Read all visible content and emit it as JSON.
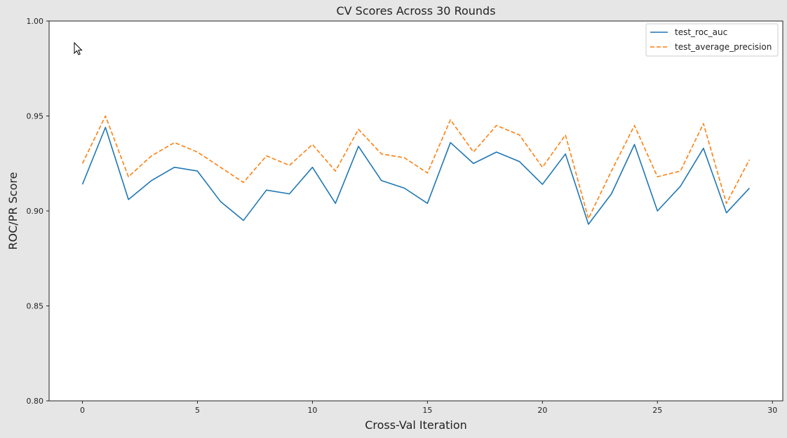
{
  "chart_data": {
    "type": "line",
    "title": "CV Scores Across 30 Rounds",
    "xlabel": "Cross-Val Iteration",
    "ylabel": "ROC/PR Score",
    "xlim": [
      -1.45,
      30.45
    ],
    "ylim": [
      0.8,
      1.0
    ],
    "xticks": [
      0,
      5,
      10,
      15,
      20,
      25,
      30
    ],
    "xtick_labels": [
      "0",
      "5",
      "10",
      "15",
      "20",
      "25",
      "30"
    ],
    "yticks": [
      0.8,
      0.85,
      0.9,
      0.95,
      1.0
    ],
    "ytick_labels": [
      "0.80",
      "0.85",
      "0.90",
      "0.95",
      "1.00"
    ],
    "grid": false,
    "legend_position": "top-right",
    "x": [
      0,
      1,
      2,
      3,
      4,
      5,
      6,
      7,
      8,
      9,
      10,
      11,
      12,
      13,
      14,
      15,
      16,
      17,
      18,
      19,
      20,
      21,
      22,
      23,
      24,
      25,
      26,
      27,
      28,
      29
    ],
    "series": [
      {
        "name": "test_roc_auc",
        "color": "#1f77b4",
        "style": "solid",
        "values": [
          0.914,
          0.944,
          0.906,
          0.916,
          0.923,
          0.921,
          0.905,
          0.895,
          0.911,
          0.909,
          0.923,
          0.904,
          0.934,
          0.916,
          0.912,
          0.904,
          0.936,
          0.925,
          0.931,
          0.926,
          0.914,
          0.93,
          0.893,
          0.909,
          0.935,
          0.9,
          0.913,
          0.933,
          0.899,
          0.912
        ]
      },
      {
        "name": "test_average_precision",
        "color": "#ff7f0e",
        "style": "dashed",
        "values": [
          0.925,
          0.95,
          0.918,
          0.929,
          0.936,
          0.931,
          0.923,
          0.915,
          0.929,
          0.924,
          0.935,
          0.921,
          0.943,
          0.93,
          0.928,
          0.92,
          0.948,
          0.931,
          0.945,
          0.94,
          0.923,
          0.94,
          0.896,
          0.921,
          0.945,
          0.918,
          0.921,
          0.946,
          0.904,
          0.927
        ]
      }
    ]
  },
  "icons": {
    "cursor": "mouse-pointer-icon"
  }
}
